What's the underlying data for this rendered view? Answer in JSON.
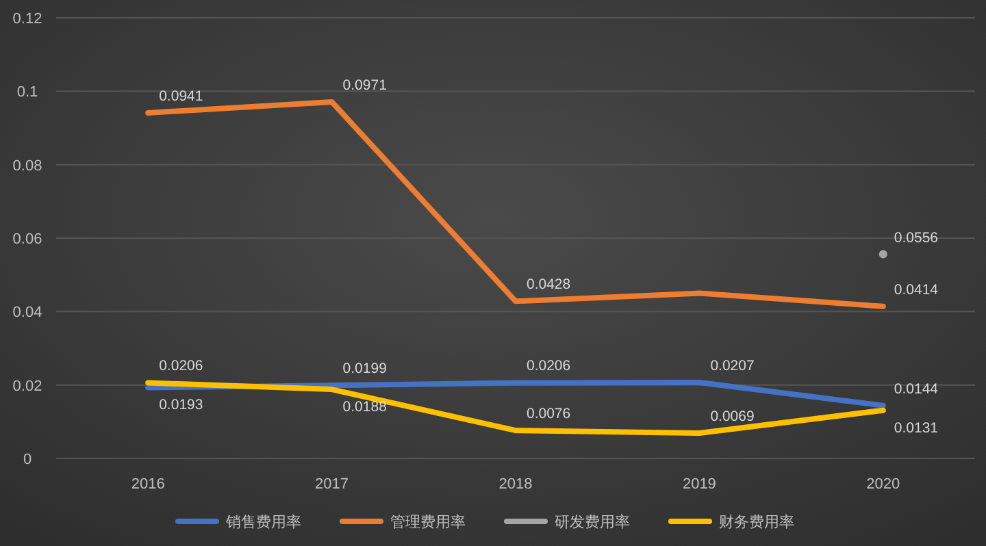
{
  "chart_data": {
    "type": "line",
    "categories": [
      "2016",
      "2017",
      "2018",
      "2019",
      "2020"
    ],
    "ylim": [
      0,
      0.12
    ],
    "yticks": [
      {
        "value": 0,
        "label": "0"
      },
      0.02,
      0.04,
      0.06,
      0.08,
      0.1,
      0.12
    ],
    "grid": "y",
    "legend": "bottom",
    "line_style": "solid",
    "series": [
      {
        "name": "销售费用率",
        "color": "#4472c4",
        "values": [
          0.0193,
          0.0199,
          0.0206,
          0.0207,
          0.0144
        ],
        "value_labels": [
          "0.0193",
          "0.0199",
          "0.0206",
          "0.0207",
          "0.0144"
        ]
      },
      {
        "name": "管理费用率",
        "color": "#ed7d31",
        "values": [
          0.0941,
          0.0971,
          0.0428,
          0.045,
          0.0414
        ],
        "value_labels": [
          "0.0941",
          "0.0971",
          "0.0428",
          null,
          "0.0414"
        ]
      },
      {
        "name": "研发费用率",
        "color": "#a5a5a5",
        "marker": "circle",
        "values": [
          null,
          null,
          null,
          null,
          0.0556
        ],
        "value_labels": [
          null,
          null,
          null,
          null,
          "0.0556"
        ]
      },
      {
        "name": "财务费用率",
        "color": "#ffc000",
        "values": [
          0.0206,
          0.0188,
          0.0076,
          0.0069,
          0.0131
        ],
        "value_labels": [
          "0.0206",
          "0.0188",
          "0.0076",
          "0.0069",
          "0.0131"
        ]
      }
    ]
  }
}
